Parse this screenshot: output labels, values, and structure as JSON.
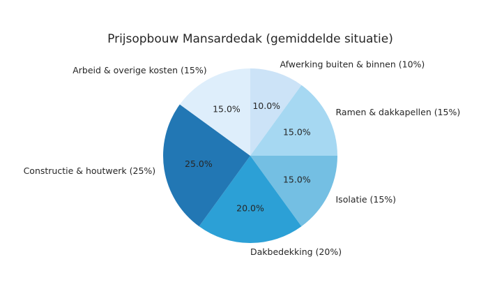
{
  "chart_data": {
    "type": "pie",
    "title": "Prijsopbouw Mansardedak (gemiddelde situatie)",
    "start_angle_deg": 90,
    "direction": "clockwise",
    "slices": [
      {
        "label": "Afwerking buiten & binnen (10%)",
        "value": 10,
        "pct_label": "10.0%",
        "color": "#cce3f7"
      },
      {
        "label": "Ramen & dakkapellen (15%)",
        "value": 15,
        "pct_label": "15.0%",
        "color": "#a6d8f2"
      },
      {
        "label": "Isolatie (15%)",
        "value": 15,
        "pct_label": "15.0%",
        "color": "#74bfe3"
      },
      {
        "label": "Dakbedekking (20%)",
        "value": 20,
        "pct_label": "20.0%",
        "color": "#2ca0d6"
      },
      {
        "label": "Constructie & houtwerk (25%)",
        "value": 25,
        "pct_label": "25.0%",
        "color": "#2277b4"
      },
      {
        "label": "Arbeid & overige kosten (15%)",
        "value": 15,
        "pct_label": "15.0%",
        "color": "#deeefb"
      }
    ]
  }
}
